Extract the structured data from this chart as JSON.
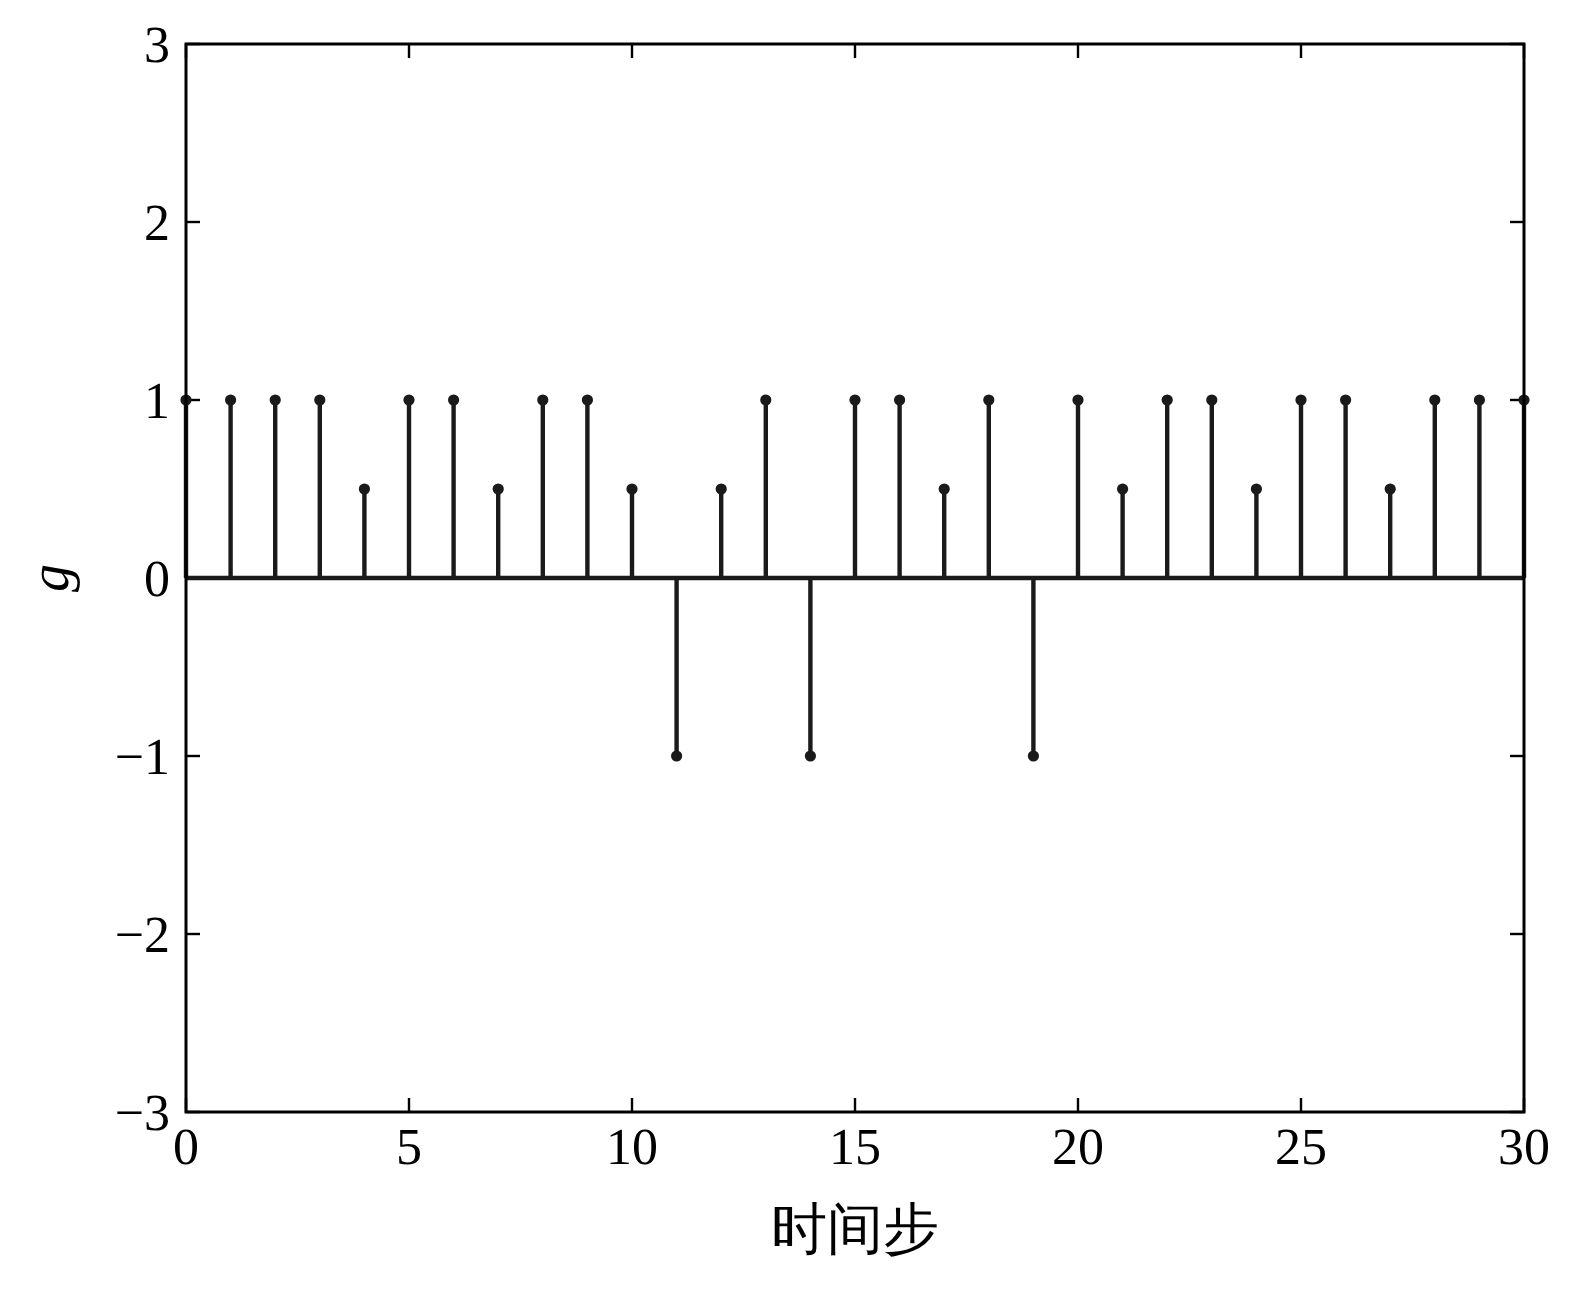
{
  "chart_data": {
    "type": "lollipop",
    "xlabel": "时间步",
    "ylabel": "g",
    "x": [
      0,
      1,
      2,
      3,
      4,
      5,
      6,
      7,
      8,
      9,
      10,
      11,
      12,
      13,
      14,
      15,
      16,
      17,
      18,
      19,
      20,
      21,
      22,
      23,
      24,
      25,
      26,
      27,
      28,
      29,
      30
    ],
    "values": [
      1,
      1,
      1,
      1,
      0.5,
      1,
      1,
      0.5,
      1,
      1,
      0.5,
      -1,
      0.5,
      1,
      -1,
      1,
      1,
      0.5,
      1,
      -1,
      1,
      0.5,
      1,
      1,
      0.5,
      1,
      1,
      0.5,
      1,
      1,
      1
    ],
    "color": "#1a1a1a",
    "marker": "circle",
    "xlim": [
      0,
      30
    ],
    "xticks": [
      0,
      5,
      10,
      15,
      20,
      25,
      30
    ],
    "ylim": [
      -3,
      3
    ],
    "yticks": [
      {
        "value": -3,
        "label": "−3"
      },
      {
        "value": -2,
        "label": "−2"
      },
      {
        "value": -1,
        "label": "−1"
      },
      0,
      1,
      2,
      3
    ],
    "ref_lines": [
      {
        "axis": "y",
        "value": 0,
        "color": "#1a1a1a"
      }
    ]
  }
}
